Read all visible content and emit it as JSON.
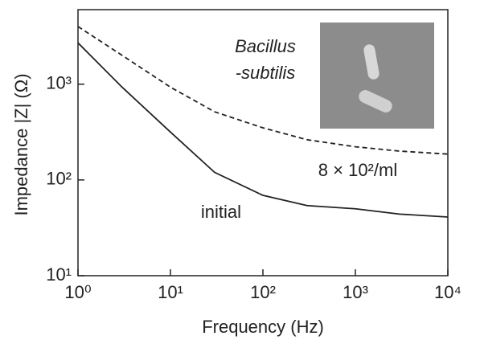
{
  "chart_data": {
    "type": "line",
    "xlabel": "Frequency (Hz)",
    "ylabel": "Impedance |Z| (Ω)",
    "x": [
      1,
      3,
      10,
      30,
      100,
      300,
      1000,
      3000,
      10000
    ],
    "series": [
      {
        "name": "initial",
        "color": "#222222",
        "dash": "solid",
        "values": [
          2700,
          930,
          316,
          120,
          69,
          54,
          50,
          44,
          41
        ]
      },
      {
        "name": "8 × 10²/ml",
        "color": "#222222",
        "dash": "dashed",
        "values": [
          4000,
          2000,
          930,
          515,
          350,
          263,
          222,
          200,
          186
        ]
      }
    ],
    "annotations": [
      "Bacillus",
      "-subtilis"
    ],
    "xscale": "log",
    "yscale": "log",
    "xlim": [
      1,
      10000
    ],
    "ylim": [
      10,
      6000
    ],
    "xticks": [
      {
        "value": 1,
        "label": "10⁰"
      },
      {
        "value": 10,
        "label": "10¹"
      },
      {
        "value": 100,
        "label": "10²"
      },
      {
        "value": 1000,
        "label": "10³"
      },
      {
        "value": 10000,
        "label": "10⁴"
      }
    ],
    "yticks": [
      {
        "value": 10,
        "label": "10¹"
      },
      {
        "value": 100,
        "label": "10²"
      },
      {
        "value": 1000,
        "label": "10³"
      }
    ]
  }
}
